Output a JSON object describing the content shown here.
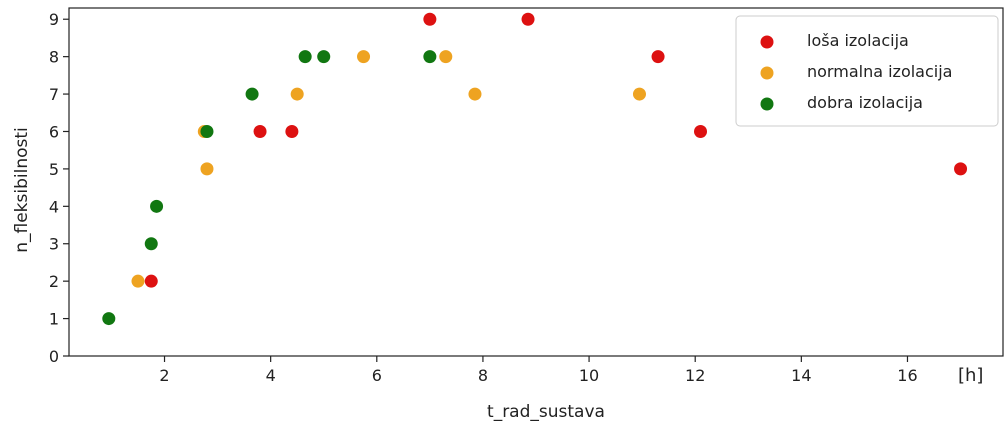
{
  "chart_data": {
    "type": "scatter",
    "xlabel": "t_rad_sustava",
    "ylabel": "n_fleksibilnosti",
    "x_unit_label": "[h]",
    "xlim": [
      0.2,
      17.8
    ],
    "ylim": [
      0,
      9.3
    ],
    "x_ticks": [
      2,
      4,
      6,
      8,
      10,
      12,
      14,
      16
    ],
    "y_ticks": [
      0,
      1,
      2,
      3,
      4,
      5,
      6,
      7,
      8,
      9
    ],
    "grid": false,
    "legend_position": "top-right",
    "series": [
      {
        "name": "loša izolacija",
        "color": "#dd1111",
        "points": [
          {
            "x": 1.75,
            "y": 2
          },
          {
            "x": 3.8,
            "y": 6
          },
          {
            "x": 4.4,
            "y": 6
          },
          {
            "x": 7.0,
            "y": 9
          },
          {
            "x": 8.85,
            "y": 9
          },
          {
            "x": 11.3,
            "y": 8
          },
          {
            "x": 12.1,
            "y": 6
          },
          {
            "x": 17.0,
            "y": 5
          }
        ]
      },
      {
        "name": "normalna izolacija",
        "color": "#eea321",
        "points": [
          {
            "x": 1.5,
            "y": 2
          },
          {
            "x": 2.75,
            "y": 6
          },
          {
            "x": 2.8,
            "y": 5
          },
          {
            "x": 4.5,
            "y": 7
          },
          {
            "x": 5.75,
            "y": 8
          },
          {
            "x": 7.3,
            "y": 8
          },
          {
            "x": 7.85,
            "y": 7
          },
          {
            "x": 10.95,
            "y": 7
          }
        ]
      },
      {
        "name": "dobra izolacija",
        "color": "#117711",
        "points": [
          {
            "x": 0.95,
            "y": 1
          },
          {
            "x": 1.75,
            "y": 3
          },
          {
            "x": 1.85,
            "y": 4
          },
          {
            "x": 2.8,
            "y": 6
          },
          {
            "x": 3.65,
            "y": 7
          },
          {
            "x": 4.65,
            "y": 8
          },
          {
            "x": 5.0,
            "y": 8
          },
          {
            "x": 7.0,
            "y": 8
          }
        ]
      }
    ]
  }
}
